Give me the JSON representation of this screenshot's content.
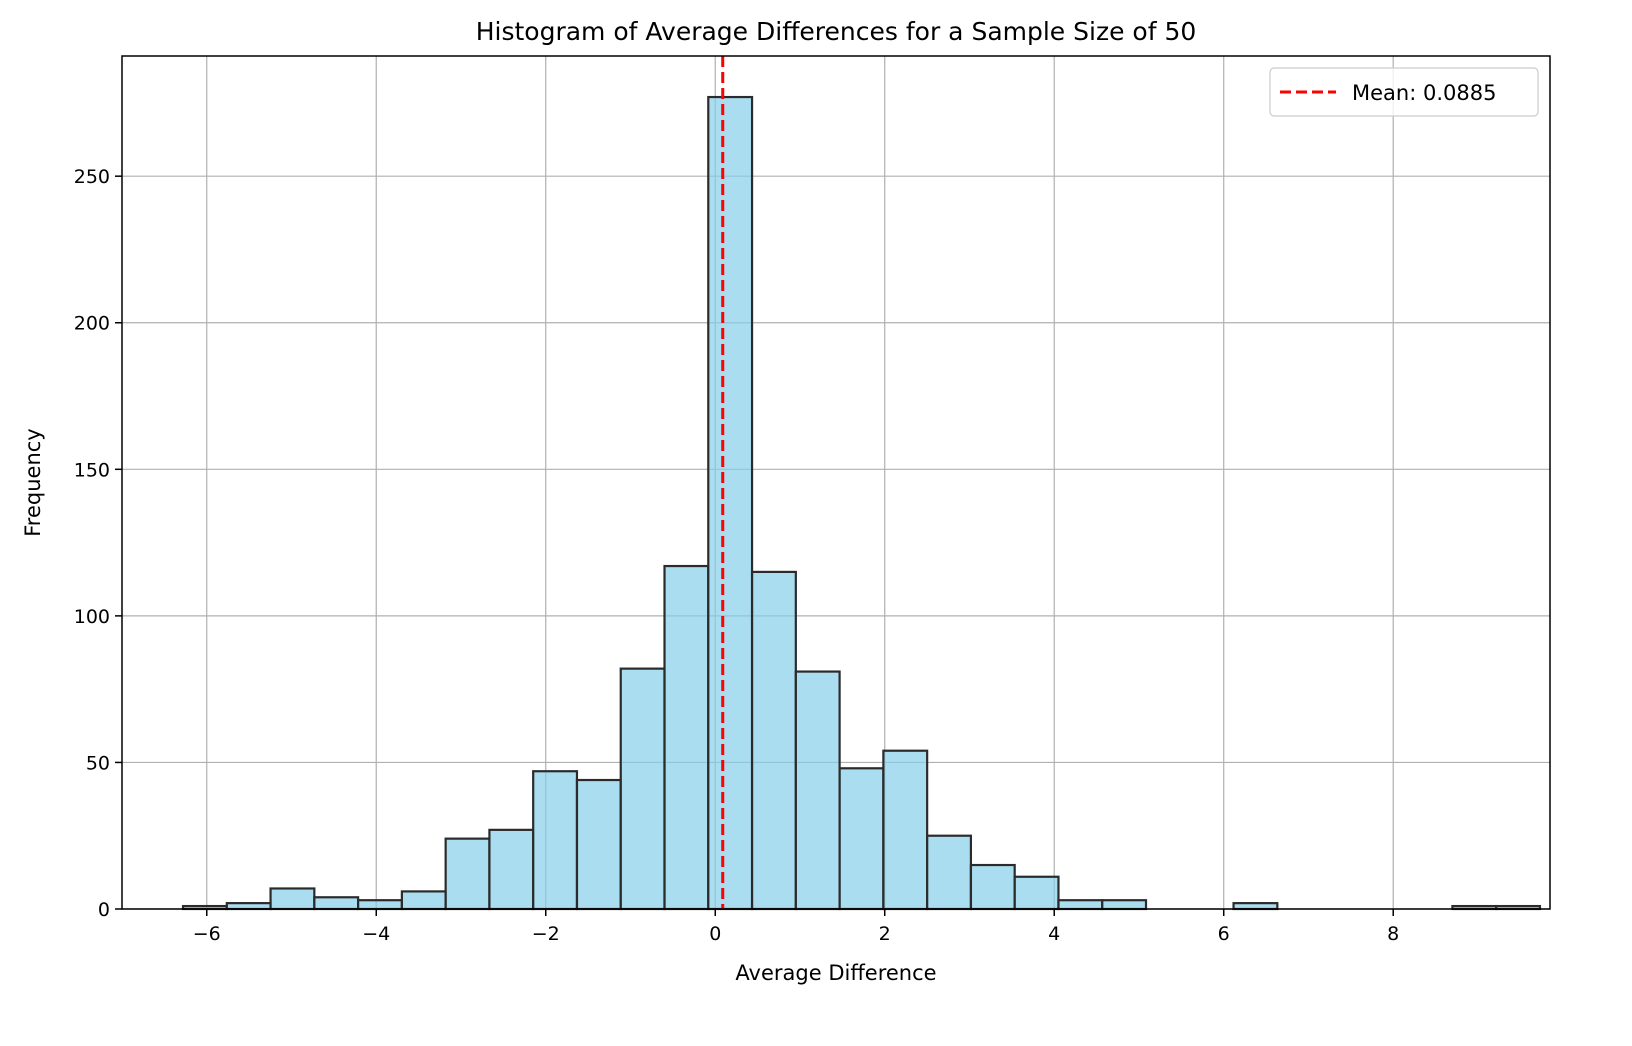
{
  "chart_data": {
    "type": "bar",
    "title": "Histogram of Average Differences for a Sample Size of 50",
    "xlabel": "Average Difference",
    "ylabel": "Frequency",
    "xlim": [
      -7.0,
      9.85
    ],
    "ylim": [
      0,
      291
    ],
    "xticks": [
      -6,
      -4,
      -2,
      0,
      2,
      4,
      6,
      8
    ],
    "xtick_labels": [
      "−6",
      "−4",
      "−2",
      "0",
      "2",
      "4",
      "6",
      "8"
    ],
    "yticks": [
      0,
      50,
      100,
      150,
      200,
      250
    ],
    "ytick_labels": [
      "0",
      "50",
      "100",
      "150",
      "200",
      "250"
    ],
    "grid": true,
    "legend_position": "top-right",
    "colors": {
      "bar_fill": "#87CEEB",
      "bar_edge": "#2b2b2b",
      "mean_line": "#ff0000",
      "grid": "#b0b0b0"
    },
    "bin_start": -6.28,
    "bin_width": 0.5165,
    "counts": [
      1,
      2,
      7,
      4,
      3,
      6,
      24,
      27,
      47,
      44,
      82,
      117,
      277,
      115,
      81,
      48,
      54,
      25,
      15,
      11,
      3,
      3,
      0,
      0,
      2,
      0,
      0,
      0,
      0,
      1,
      1
    ],
    "mean": {
      "value": 0.0885,
      "label": "Mean: 0.0885"
    }
  }
}
